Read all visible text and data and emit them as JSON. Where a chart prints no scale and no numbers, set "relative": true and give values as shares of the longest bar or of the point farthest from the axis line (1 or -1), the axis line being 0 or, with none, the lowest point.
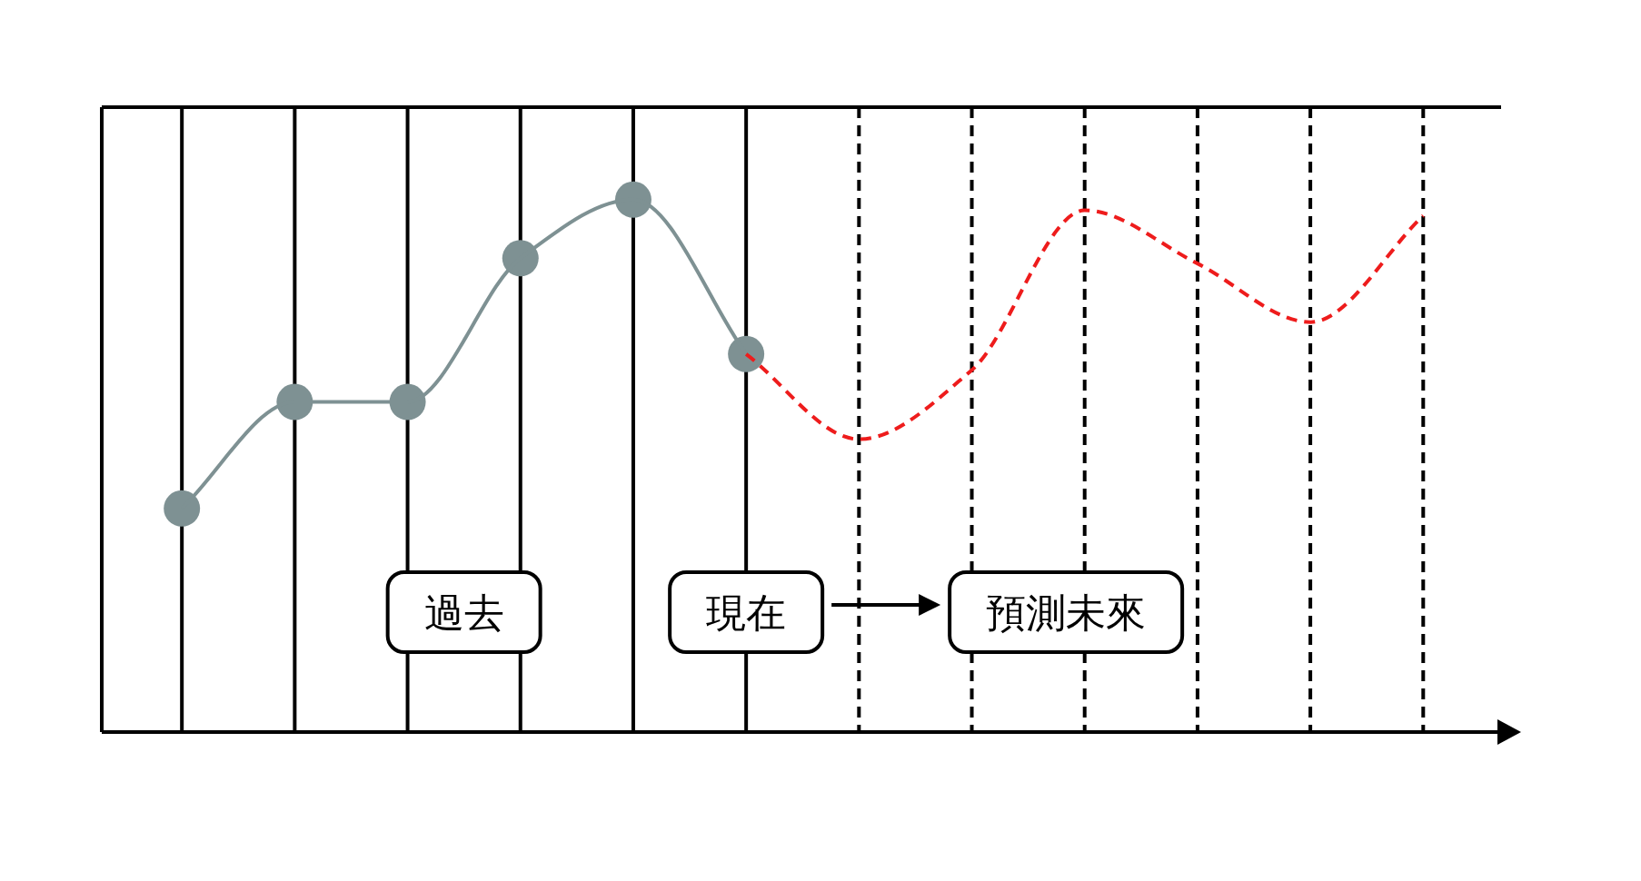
{
  "chart_data": {
    "type": "line",
    "relative": true,
    "categories": [
      null,
      null,
      null,
      null,
      null,
      null,
      null,
      null,
      null,
      null,
      null,
      null
    ],
    "series": [
      {
        "color": "#7e9193",
        "marker": "circle",
        "line_style": "solid",
        "values": [
          0.42,
          0.62,
          0.62,
          0.89,
          1.0,
          0.71,
          null,
          null,
          null,
          null,
          null,
          null
        ]
      },
      {
        "color": "#ee1c1c",
        "marker": "none",
        "line_style": "dashed",
        "values": [
          null,
          null,
          null,
          null,
          null,
          0.71,
          0.55,
          0.68,
          0.98,
          0.88,
          0.77,
          0.97
        ]
      }
    ],
    "grid": "x",
    "annotations": [
      "過去",
      "現在",
      "預測未來"
    ]
  }
}
